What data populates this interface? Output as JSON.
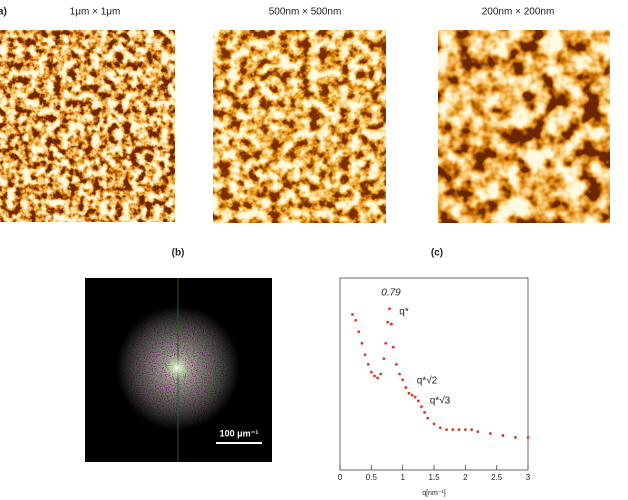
{
  "figure": {
    "panel_a": {
      "label": "a)",
      "images": [
        "1μm × 1μm",
        "500nm × 500nm",
        "200nm × 200nm"
      ]
    },
    "panel_b": {
      "label": "(b)",
      "scale_bar": "100 μm⁻¹"
    },
    "panel_c": {
      "label": "(c)"
    }
  },
  "chart_data": {
    "type": "scatter",
    "color": "#e8341c",
    "x": [
      0.2,
      0.25,
      0.3,
      0.35,
      0.4,
      0.45,
      0.5,
      0.55,
      0.6,
      0.65,
      0.7,
      0.73,
      0.76,
      0.79,
      0.82,
      0.85,
      0.9,
      0.95,
      1.0,
      1.05,
      1.1,
      1.15,
      1.2,
      1.25,
      1.3,
      1.35,
      1.4,
      1.5,
      1.6,
      1.7,
      1.8,
      1.9,
      2.0,
      2.1,
      2.2,
      2.4,
      2.6,
      2.8,
      3.0
    ],
    "values": [
      0.81,
      0.78,
      0.72,
      0.66,
      0.6,
      0.55,
      0.51,
      0.49,
      0.48,
      0.5,
      0.58,
      0.66,
      0.77,
      0.84,
      0.76,
      0.64,
      0.55,
      0.5,
      0.47,
      0.43,
      0.4,
      0.39,
      0.38,
      0.36,
      0.33,
      0.3,
      0.27,
      0.24,
      0.22,
      0.21,
      0.21,
      0.21,
      0.21,
      0.21,
      0.2,
      0.19,
      0.18,
      0.17,
      0.17
    ],
    "xlim": [
      0,
      3
    ],
    "ylim": [
      0,
      1
    ],
    "xticks": [
      0,
      0.5,
      1,
      1.5,
      2,
      2.5,
      3
    ],
    "x_label": "q[nm⁻¹]",
    "annotations": [
      "0.79",
      "q*",
      "q*√2",
      "q*√3"
    ]
  }
}
